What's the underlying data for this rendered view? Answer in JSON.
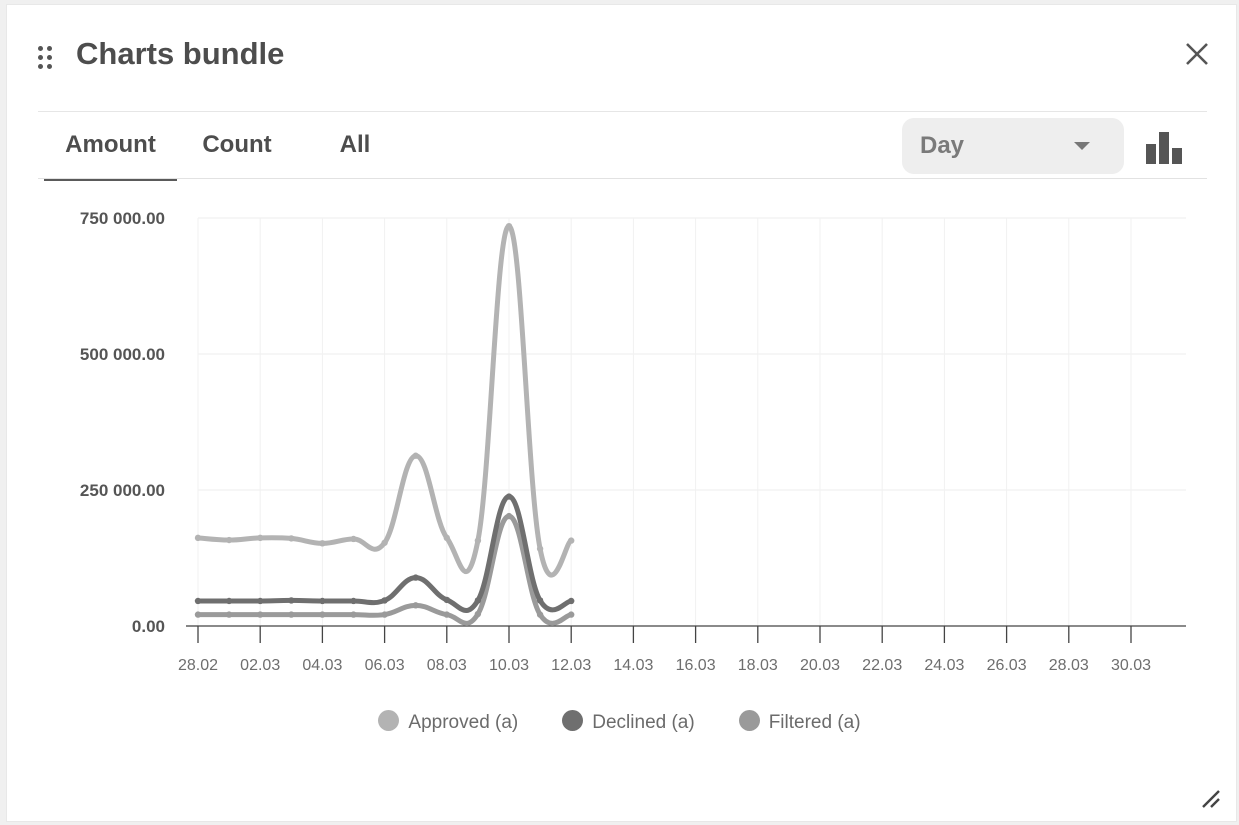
{
  "window": {
    "title": "Charts bundle"
  },
  "tabs": [
    {
      "label": "Amount",
      "active": true
    },
    {
      "label": "Count",
      "active": false
    },
    {
      "label": "All",
      "active": false
    }
  ],
  "period_select": {
    "value": "Day"
  },
  "icons": {
    "drag": "drag-handle-icon",
    "close": "close-icon",
    "chart_type": "bar-chart-icon",
    "resize": "resize-handle-icon",
    "caret": "chevron-down-icon"
  },
  "colors": {
    "approved": "#b3b3b3",
    "declined": "#6f6f6f",
    "filtered": "#9a9a9a"
  },
  "chart_data": {
    "type": "line",
    "smooth": true,
    "title": "",
    "xlabel": "",
    "ylabel": "",
    "grid": true,
    "legend_position": "bottom-center",
    "ylim": [
      0,
      750000
    ],
    "y_ticks": [
      "0.00",
      "250 000.00",
      "500 000.00",
      "750 000.00"
    ],
    "x_ticks": [
      "28.02",
      "02.03",
      "04.03",
      "06.03",
      "08.03",
      "10.03",
      "12.03",
      "14.03",
      "16.03",
      "18.03",
      "20.03",
      "22.03",
      "24.03",
      "26.03",
      "28.03",
      "30.03"
    ],
    "x": [
      "28.02",
      "01.03",
      "02.03",
      "03.03",
      "04.03",
      "05.03",
      "06.03",
      "07.03",
      "08.03",
      "09.03",
      "10.03",
      "11.03",
      "12.03"
    ],
    "series": [
      {
        "name": "Approved (a)",
        "values": [
          162000,
          158000,
          162000,
          161000,
          152000,
          160000,
          153000,
          313000,
          162000,
          157000,
          735000,
          142000,
          157000
        ]
      },
      {
        "name": "Declined (a)",
        "values": [
          46000,
          46000,
          46000,
          47000,
          46000,
          46000,
          47000,
          89000,
          48000,
          47000,
          238000,
          47000,
          46000
        ]
      },
      {
        "name": "Filtered (a)",
        "values": [
          21000,
          21000,
          21000,
          21000,
          21000,
          21000,
          21000,
          38000,
          21000,
          22000,
          202000,
          21000,
          21000
        ]
      }
    ]
  }
}
